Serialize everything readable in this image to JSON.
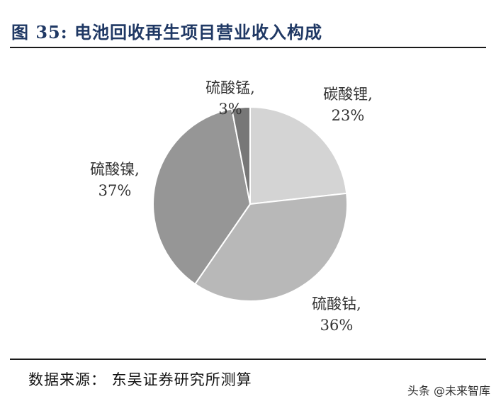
{
  "figure": {
    "title": "图 35: 电池回收再生项目营业收入构成",
    "source": "数据来源： 东吴证券研究所测算",
    "watermark": "头条 @未来智库"
  },
  "chart_data": {
    "type": "pie",
    "title": "图 35: 电池回收再生项目营业收入构成",
    "slices": [
      {
        "label": "碳酸锂",
        "value": 23,
        "pct_label": "23%",
        "color": "#d4d4d4"
      },
      {
        "label": "硫酸钴",
        "value": 36,
        "pct_label": "36%",
        "color": "#b8b8b8"
      },
      {
        "label": "硫酸镍",
        "value": 37,
        "pct_label": "37%",
        "color": "#969696"
      },
      {
        "label": "硫酸锰",
        "value": 3,
        "pct_label": "3%",
        "color": "#777777"
      }
    ],
    "start_angle_deg": 0,
    "direction": "clockwise",
    "legend": "none"
  }
}
